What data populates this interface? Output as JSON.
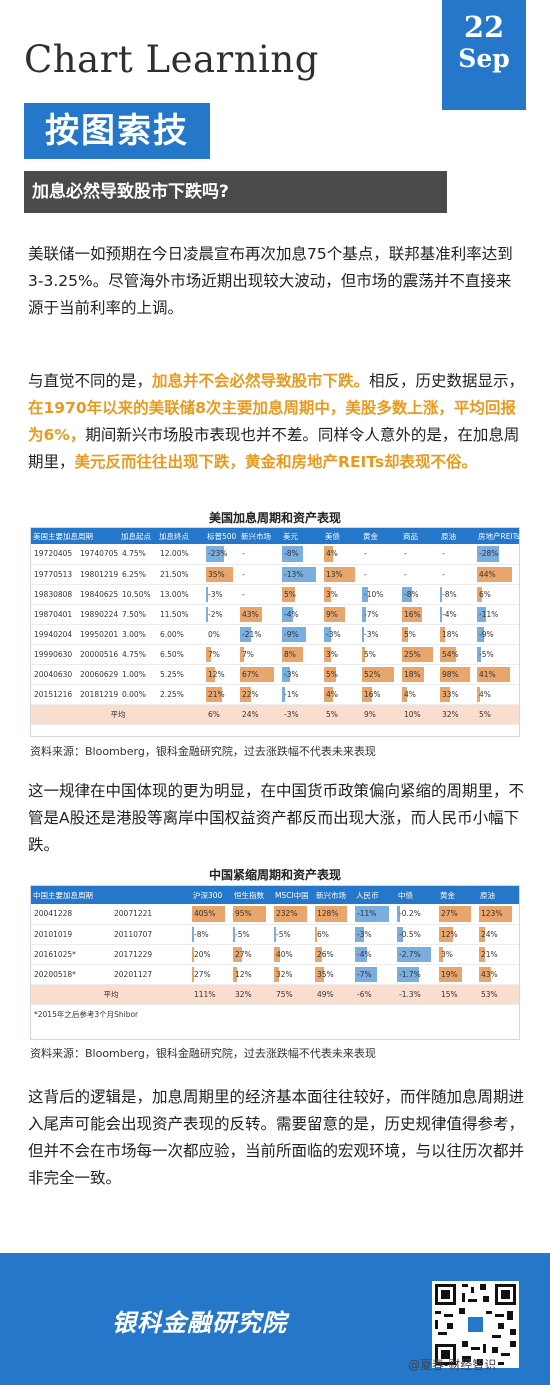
{
  "header": {
    "title_en": "Chart Learning",
    "title_cn": "按图索技",
    "date_day": "22",
    "date_month": "Sep",
    "question": "加息必然导致股市下跌吗?"
  },
  "paragraphs": {
    "p1": "美联储一如预期在今日凌晨宣布再次加息75个基点，联邦基准利率达到3-3.25%。尽管海外市场近期出现较大波动，但市场的震荡并不直接来源于当前利率的上调。",
    "p2_a": "与直觉不同的是，",
    "p2_b": "加息并不会必然导致股市下跌。",
    "p2_c": "相反，历史数据显示，",
    "p2_d": "在1970年以来的美联储8次主要加息周期中，美股多数上涨，平均回报为6%，",
    "p2_e": "期间新兴市场股市表现也并不差。同样令人意外的是，在加息周期里，",
    "p2_f": "美元反而往往出现下跌，黄金和房地产REITs却表现不俗。",
    "p3": "这一规律在中国体现的更为明显，在中国货币政策偏向紧缩的周期里，不管是A股还是港股等离岸中国权益资产都反而出现大涨，而人民币小幅下跌。",
    "p4": "这背后的逻辑是，加息周期里的经济基本面往往较好，而伴随加息周期进入尾声可能会出现资产表现的反转。需要留意的是，历史规律值得参考，但并不会在市场每一次都应验，当前所面临的宏观环境，与以往历次都并非完全一致。"
  },
  "chart_data": [
    {
      "type": "table",
      "title": "美国加息周期和资产表现",
      "headers": [
        "美国主要加息周期",
        "",
        "加息起点",
        "加息终点",
        "标普500",
        "新兴市场",
        "美元",
        "美债",
        "黄金",
        "商品",
        "原油",
        "房地产REITs"
      ],
      "rows": [
        [
          "19720405",
          "19740705",
          "4.75%",
          "12.00%",
          "-23%",
          "-",
          "-8%",
          "4%",
          "-",
          "-",
          "-",
          "-28%"
        ],
        [
          "19770513",
          "19801219",
          "6.25%",
          "21.50%",
          "35%",
          "-",
          "-13%",
          "13%",
          "-",
          "-",
          "-",
          "44%"
        ],
        [
          "19830808",
          "19840625",
          "10.50%",
          "13.00%",
          "-3%",
          "-",
          "5%",
          "3%",
          "-10%",
          "-8%",
          "-8%",
          "6%"
        ],
        [
          "19870401",
          "19890224",
          "7.50%",
          "11.50%",
          "-2%",
          "43%",
          "-4%",
          "9%",
          "-7%",
          "16%",
          "-4%",
          "-11%"
        ],
        [
          "19940204",
          "19950201",
          "3.00%",
          "6.00%",
          "0%",
          "-21%",
          "-9%",
          "-3%",
          "-3%",
          "5%",
          "18%",
          "-9%"
        ],
        [
          "19990630",
          "20000516",
          "4.75%",
          "6.50%",
          "7%",
          "7%",
          "8%",
          "3%",
          "5%",
          "25%",
          "54%",
          "-5%"
        ],
        [
          "20040630",
          "20060629",
          "1.00%",
          "5.25%",
          "12%",
          "67%",
          "-3%",
          "5%",
          "52%",
          "18%",
          "98%",
          "41%"
        ],
        [
          "20151216",
          "20181219",
          "0.00%",
          "2.25%",
          "21%",
          "22%",
          "-1%",
          "4%",
          "16%",
          "4%",
          "33%",
          "4%"
        ]
      ],
      "average_label": "平均",
      "average": [
        "6%",
        "24%",
        "-3%",
        "5%",
        "9%",
        "10%",
        "32%",
        "5%"
      ],
      "bar_values": [
        [
          -23,
          null,
          -8,
          4,
          null,
          null,
          null,
          -28
        ],
        [
          35,
          null,
          -13,
          13,
          null,
          null,
          null,
          44
        ],
        [
          -3,
          null,
          5,
          3,
          -10,
          -8,
          -8,
          6
        ],
        [
          -2,
          43,
          -4,
          9,
          -7,
          16,
          -4,
          -11
        ],
        [
          0,
          -21,
          -9,
          -3,
          -3,
          5,
          18,
          -9
        ],
        [
          7,
          7,
          8,
          3,
          5,
          25,
          54,
          -5
        ],
        [
          12,
          67,
          -3,
          5,
          52,
          18,
          98,
          41
        ],
        [
          21,
          22,
          -1,
          4,
          16,
          4,
          33,
          4
        ]
      ],
      "source": "资料来源：Bloomberg，银科金融研究院，过去涨跌幅不代表未来表现"
    },
    {
      "type": "table",
      "title": "中国紧缩周期和资产表现",
      "headers": [
        "中国主要加息周期",
        "",
        "沪深300",
        "恒生指数",
        "MSCI中国",
        "新兴市场",
        "人民币",
        "中债",
        "黄金",
        "原油"
      ],
      "rows": [
        [
          "20041228",
          "20071221",
          "405%",
          "95%",
          "232%",
          "128%",
          "-11%",
          "-0.2%",
          "27%",
          "123%"
        ],
        [
          "20101019",
          "20110707",
          "-8%",
          "-5%",
          "-5%",
          "6%",
          "-3%",
          "-0.5%",
          "12%",
          "24%"
        ],
        [
          "20161025*",
          "20171229",
          "20%",
          "27%",
          "40%",
          "26%",
          "-4%",
          "-2.7%",
          "3%",
          "21%"
        ],
        [
          "20200518*",
          "20201127",
          "27%",
          "12%",
          "32%",
          "35%",
          "-7%",
          "-1.7%",
          "19%",
          "43%"
        ]
      ],
      "average_label": "平均",
      "average": [
        "111%",
        "32%",
        "75%",
        "49%",
        "-6%",
        "-1.3%",
        "15%",
        "53%"
      ],
      "bar_values": [
        [
          405,
          95,
          232,
          128,
          -11,
          -0.2,
          27,
          123
        ],
        [
          -8,
          -5,
          -5,
          6,
          -3,
          -0.5,
          12,
          24
        ],
        [
          20,
          27,
          40,
          26,
          -4,
          -2.7,
          3,
          21
        ],
        [
          27,
          12,
          32,
          35,
          -7,
          -1.7,
          19,
          43
        ]
      ],
      "note": "*2015年之后参考3个月Shibor",
      "source": "资料来源：Bloomberg，银科金融研究院，过去涨跌幅不代表未来表现"
    }
  ],
  "footer": {
    "org_name": "银科金融研究院",
    "watermark": "@夏春-财经智识"
  },
  "colors": {
    "brand_blue": "#2477c9",
    "highlight_orange": "#e99a1e",
    "positive_bar": "#e8a66c",
    "negative_bar": "#7aaede",
    "average_row": "#f9ded0"
  }
}
